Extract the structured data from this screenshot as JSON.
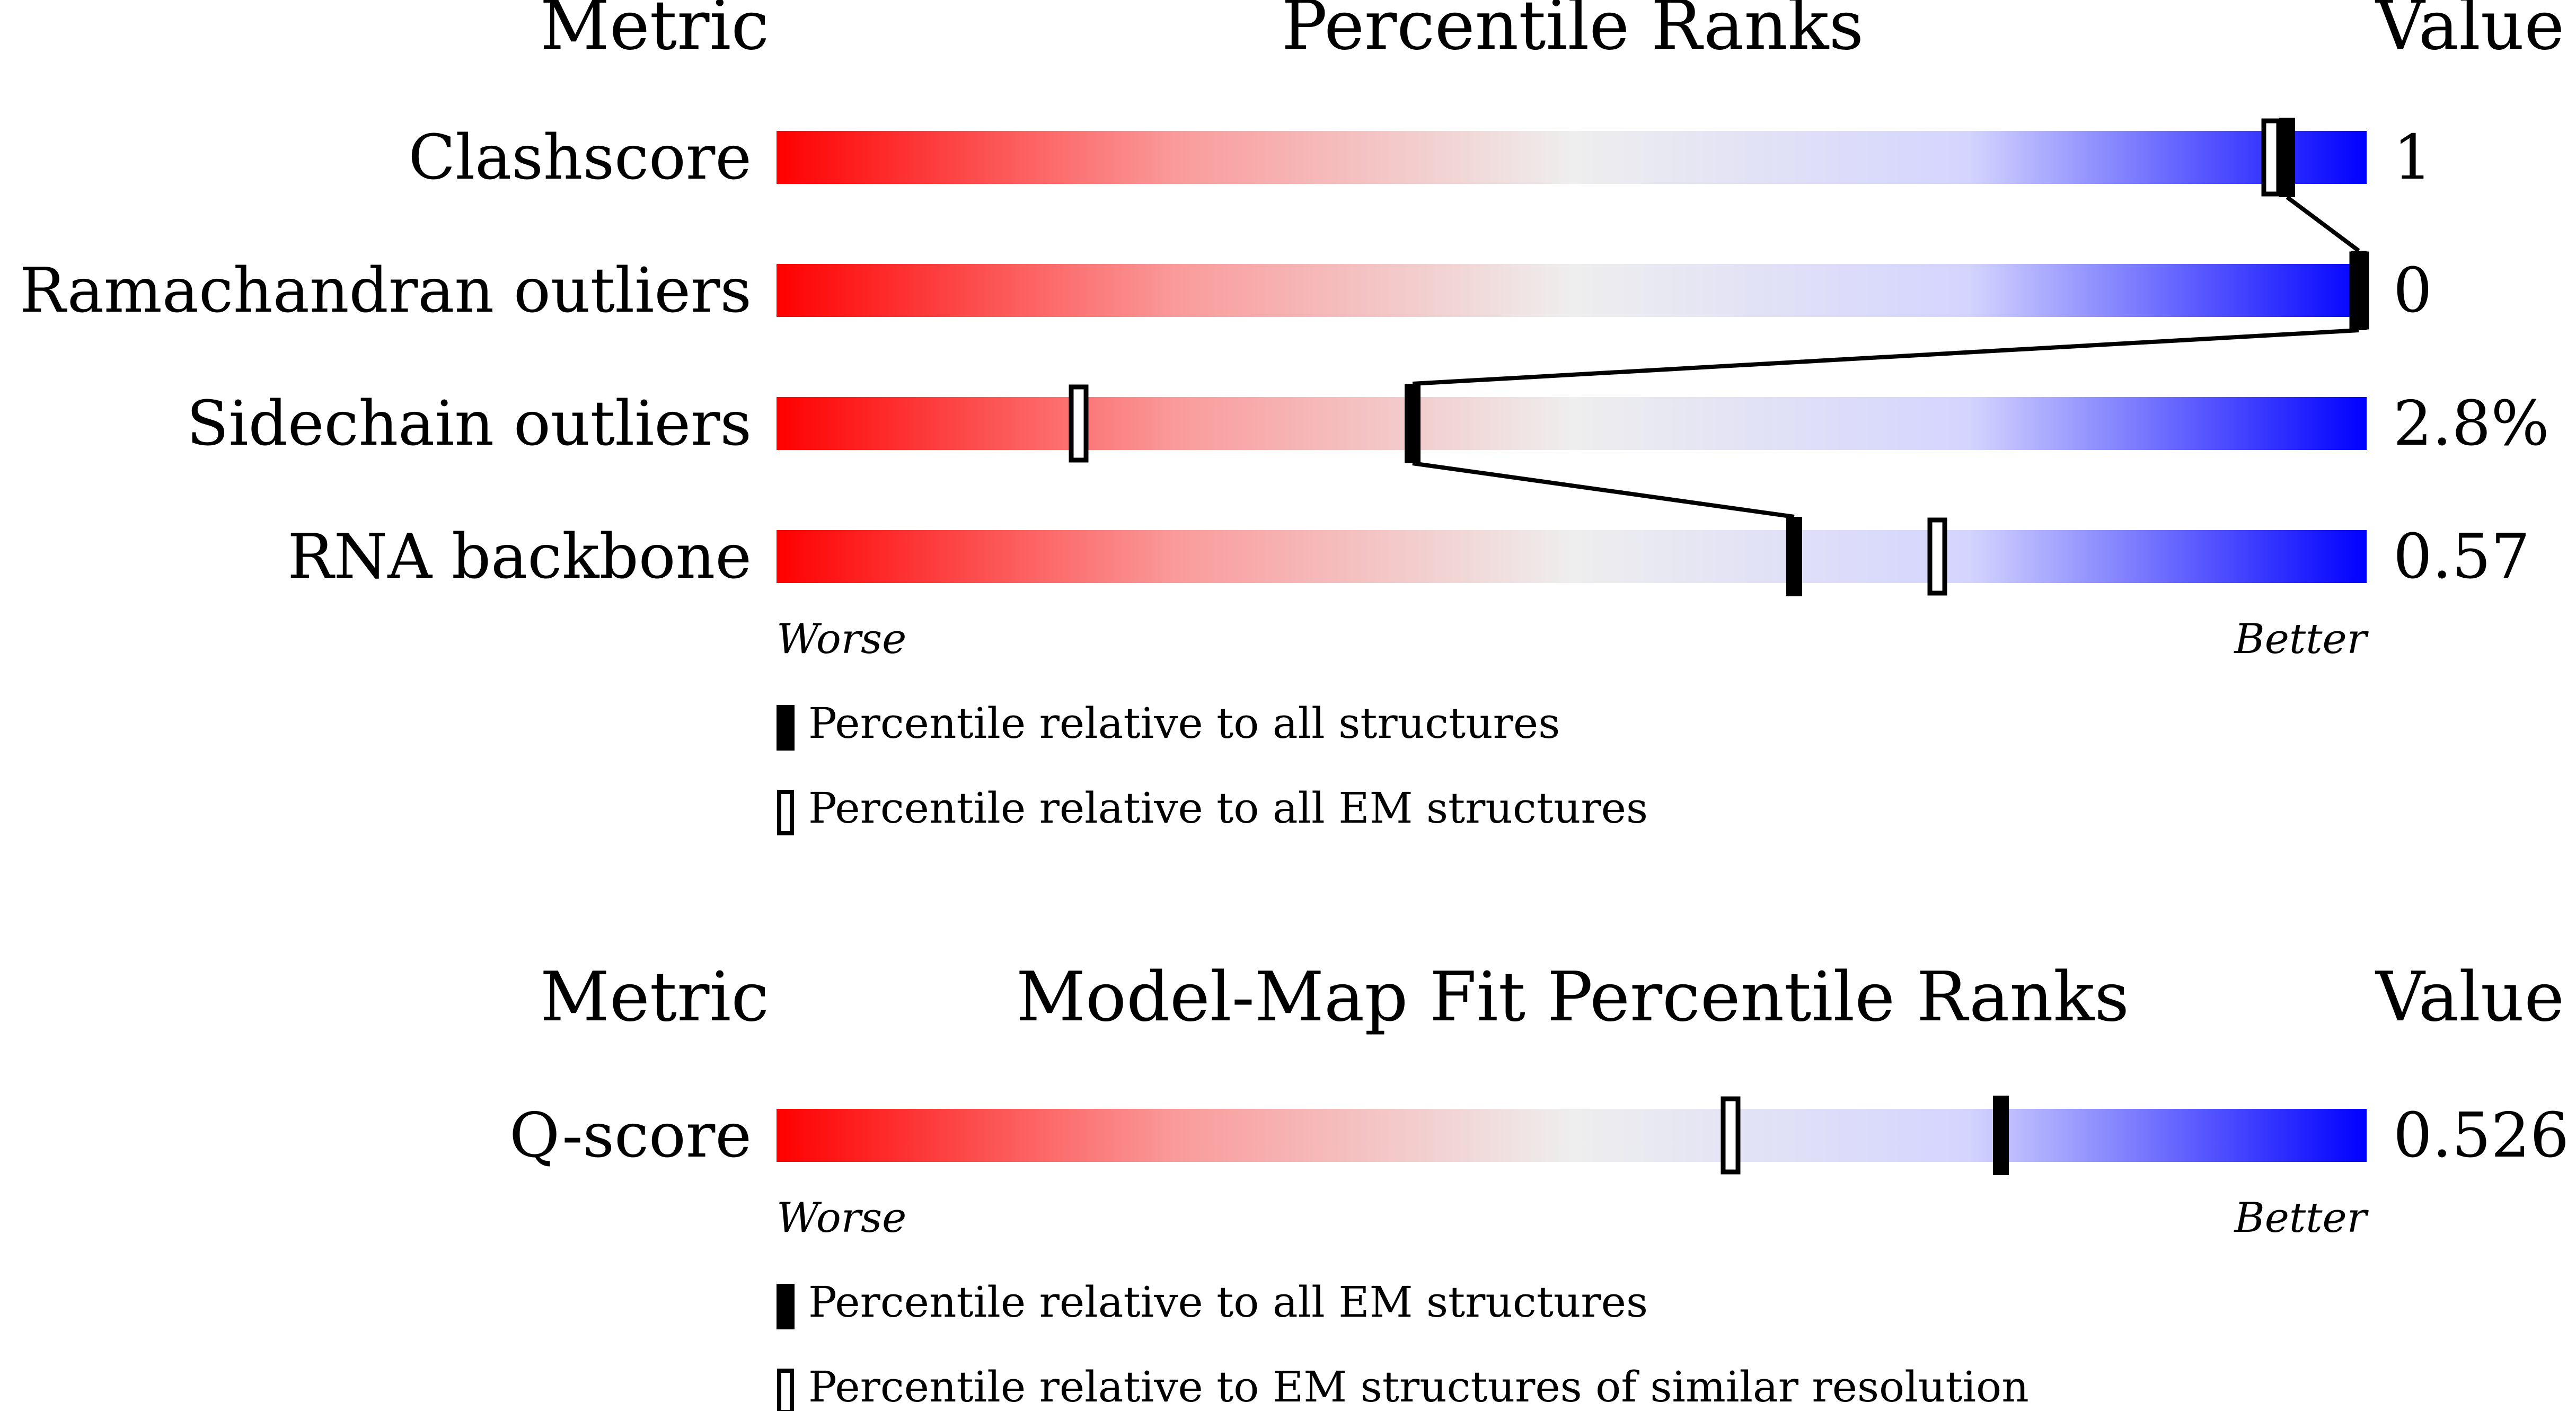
{
  "colors": {
    "worse": "#ff0000",
    "mid": "#eeeeee",
    "better": "#0000ff",
    "marker": "#000000"
  },
  "chart_data": [
    {
      "type": "bar",
      "title": "Percentile Ranks",
      "metric_header": "Metric",
      "value_header": "Value",
      "xlim": [
        0,
        100
      ],
      "axis_left": "Worse",
      "axis_right": "Better",
      "series": [
        {
          "name": "Percentile relative to all structures",
          "style": "filled"
        },
        {
          "name": "Percentile relative to all EM structures",
          "style": "open"
        }
      ],
      "rows": [
        {
          "metric": "Clashscore",
          "value": "1",
          "percentile_all": 95,
          "percentile_em": 94
        },
        {
          "metric": "Ramachandran outliers",
          "value": "0",
          "percentile_all": 100,
          "percentile_em": 100
        },
        {
          "metric": "Sidechain outliers",
          "value": "2.8%",
          "percentile_all": 40,
          "percentile_em": 19
        },
        {
          "metric": "RNA backbone",
          "value": "0.57",
          "percentile_all": 64,
          "percentile_em": 73
        }
      ]
    },
    {
      "type": "bar",
      "title": "Model-Map Fit Percentile Ranks",
      "metric_header": "Metric",
      "value_header": "Value",
      "xlim": [
        0,
        100
      ],
      "axis_left": "Worse",
      "axis_right": "Better",
      "series": [
        {
          "name": "Percentile relative to all EM structures",
          "style": "filled"
        },
        {
          "name": "Percentile relative to EM structures of similar resolution",
          "style": "open"
        }
      ],
      "rows": [
        {
          "metric": "Q-score",
          "value": "0.526",
          "percentile_all": 77,
          "percentile_em": 60
        }
      ]
    }
  ]
}
